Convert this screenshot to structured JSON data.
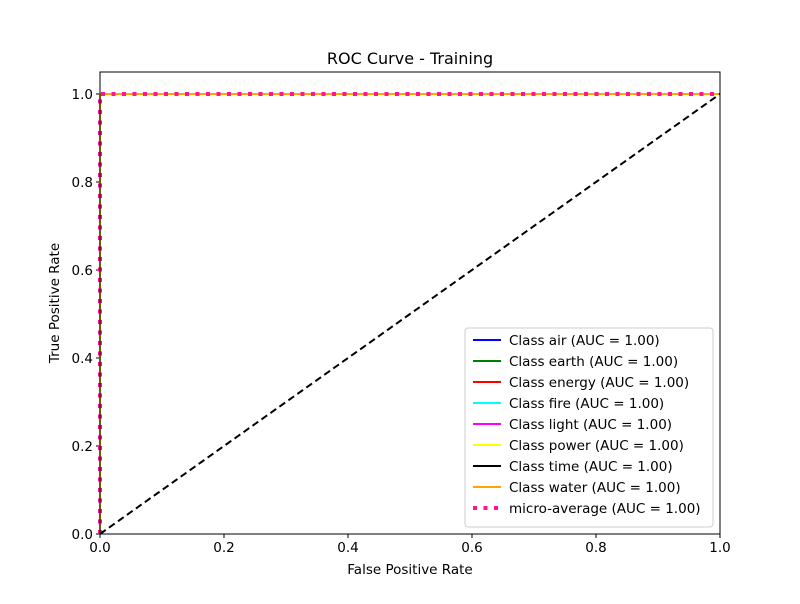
{
  "chart_data": {
    "type": "line",
    "title": "ROC Curve - Training",
    "xlabel": "False Positive Rate",
    "ylabel": "True Positive Rate",
    "xlim": [
      0.0,
      1.0
    ],
    "ylim": [
      0.0,
      1.05
    ],
    "x_ticks": [
      0.0,
      0.2,
      0.4,
      0.6,
      0.8,
      1.0
    ],
    "y_ticks": [
      0.0,
      0.2,
      0.4,
      0.6,
      0.8,
      1.0
    ],
    "x_tick_labels": [
      "0.0",
      "0.2",
      "0.4",
      "0.6",
      "0.8",
      "1.0"
    ],
    "y_tick_labels": [
      "0.0",
      "0.2",
      "0.4",
      "0.6",
      "0.8",
      "1.0"
    ],
    "grid": false,
    "legend_position": "lower-right",
    "series": [
      {
        "name": "Class air (AUC = 1.00)",
        "color": "#0000ff",
        "style": "solid",
        "x": [
          0.0,
          0.0,
          1.0
        ],
        "y": [
          0.0,
          1.0,
          1.0
        ]
      },
      {
        "name": "Class earth (AUC = 1.00)",
        "color": "#008000",
        "style": "solid",
        "x": [
          0.0,
          0.0,
          1.0
        ],
        "y": [
          0.0,
          1.0,
          1.0
        ]
      },
      {
        "name": "Class energy (AUC = 1.00)",
        "color": "#ff0000",
        "style": "solid",
        "x": [
          0.0,
          0.0,
          1.0
        ],
        "y": [
          0.0,
          1.0,
          1.0
        ]
      },
      {
        "name": "Class fire (AUC = 1.00)",
        "color": "#00ffff",
        "style": "solid",
        "x": [
          0.0,
          0.0,
          1.0
        ],
        "y": [
          0.0,
          1.0,
          1.0
        ]
      },
      {
        "name": "Class light (AUC = 1.00)",
        "color": "#ff00ff",
        "style": "solid",
        "x": [
          0.0,
          0.0,
          1.0
        ],
        "y": [
          0.0,
          1.0,
          1.0
        ]
      },
      {
        "name": "Class power (AUC = 1.00)",
        "color": "#ffff00",
        "style": "solid",
        "x": [
          0.0,
          0.0,
          1.0
        ],
        "y": [
          0.0,
          1.0,
          1.0
        ]
      },
      {
        "name": "Class time (AUC = 1.00)",
        "color": "#000000",
        "style": "solid",
        "x": [
          0.0,
          0.0,
          1.0
        ],
        "y": [
          0.0,
          1.0,
          1.0
        ]
      },
      {
        "name": "Class water (AUC = 1.00)",
        "color": "#ffa500",
        "style": "solid",
        "x": [
          0.0,
          0.0,
          1.0
        ],
        "y": [
          0.0,
          1.0,
          1.0
        ]
      },
      {
        "name": "micro-average (AUC = 1.00)",
        "color": "#ff1493",
        "style": "dotted",
        "x": [
          0.0,
          0.0,
          1.0
        ],
        "y": [
          0.0,
          1.0,
          1.0
        ]
      }
    ],
    "reference_line": {
      "x": [
        0.0,
        1.0
      ],
      "y": [
        0.0,
        1.0
      ],
      "color": "#000000",
      "style": "dashed"
    }
  }
}
